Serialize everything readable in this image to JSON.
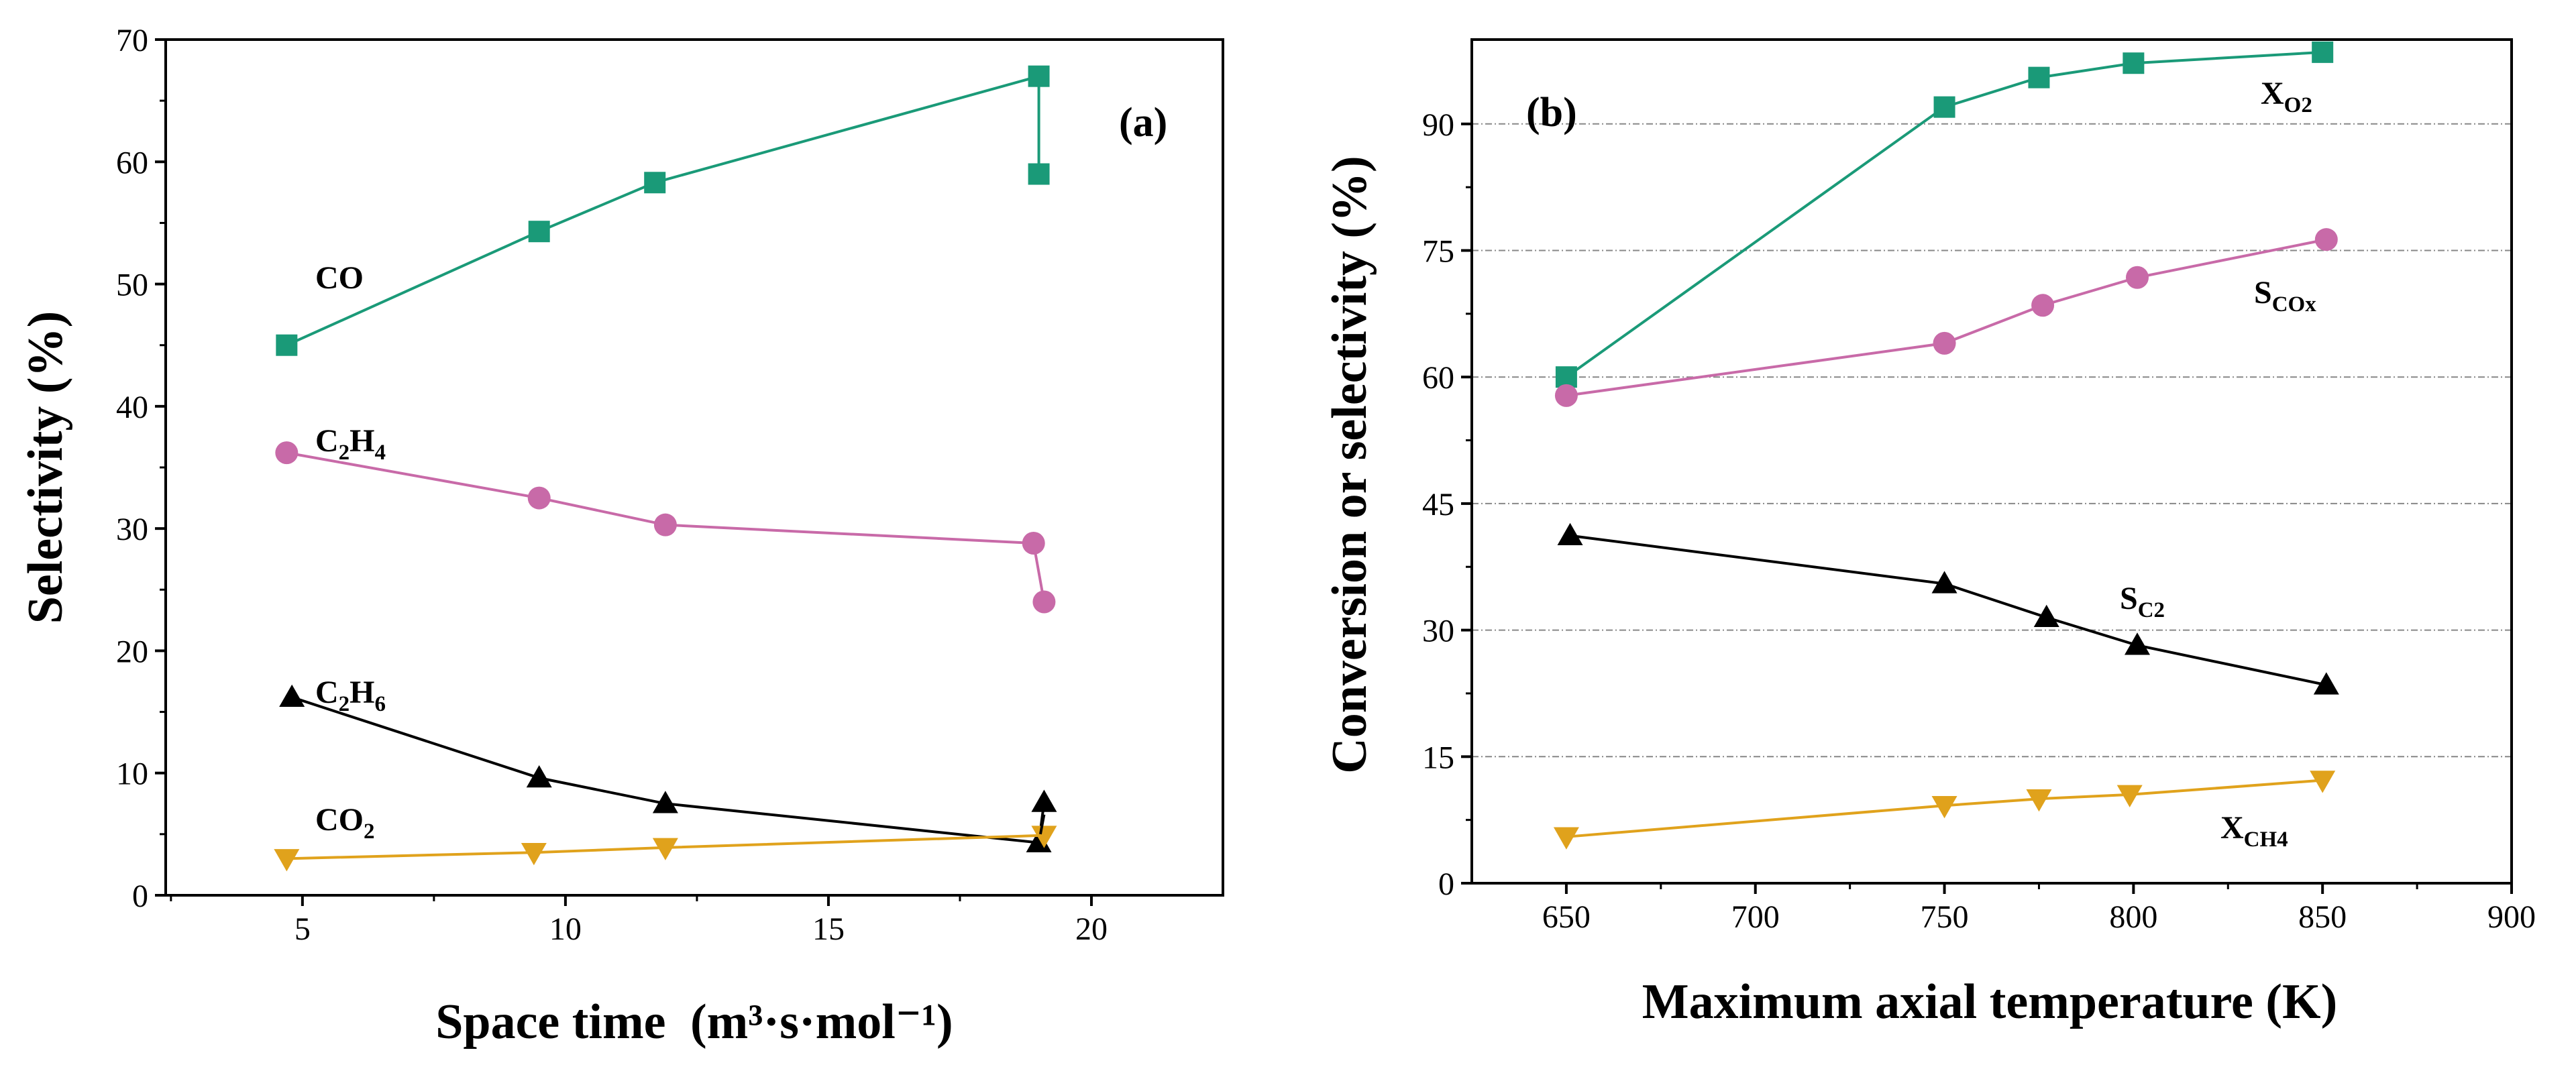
{
  "chart_data": [
    {
      "type": "line",
      "panel_label": "(a)",
      "xlabel": "Space time",
      "xlabel_unit": "(m³·s·mol⁻¹)",
      "ylabel": "Selectivity (%)",
      "xlim": [
        2.4,
        22.5
      ],
      "ylim": [
        0,
        70
      ],
      "xticks": [
        5,
        10,
        15,
        20
      ],
      "yticks": [
        0,
        10,
        20,
        30,
        40,
        50,
        60,
        70
      ],
      "grid": false,
      "series": [
        {
          "name": "CO",
          "label_main": "CO",
          "label_sub": "",
          "label_tail": "",
          "color": "#1a9a78",
          "marker": "square",
          "x": [
            4.7,
            9.5,
            11.7,
            19.0,
            19.0
          ],
          "y": [
            45.0,
            54.3,
            58.3,
            67.0,
            59.0
          ]
        },
        {
          "name": "C2H4",
          "label_main": "C",
          "label_sub": "2",
          "label_tail": "H",
          "label_sub2": "4",
          "color": "#c86aa8",
          "marker": "circle",
          "x": [
            4.7,
            9.5,
            11.9,
            18.9,
            19.1
          ],
          "y": [
            36.2,
            32.5,
            30.3,
            28.8,
            24.0
          ]
        },
        {
          "name": "C2H6",
          "label_main": "C",
          "label_sub": "2",
          "label_tail": "H",
          "label_sub2": "6",
          "color": "#000000",
          "marker": "triangle-up",
          "x": [
            4.8,
            9.5,
            11.9,
            19.0,
            19.1
          ],
          "y": [
            16.2,
            9.6,
            7.5,
            4.3,
            7.6
          ]
        },
        {
          "name": "CO2",
          "label_main": "CO",
          "label_sub": "2",
          "label_tail": "",
          "label_sub2": "",
          "color": "#e0a21c",
          "marker": "triangle-down",
          "x": [
            4.7,
            9.4,
            11.9,
            19.1
          ],
          "y": [
            3.0,
            3.5,
            3.9,
            4.9
          ]
        }
      ]
    },
    {
      "type": "line",
      "panel_label": "(b)",
      "xlabel": "Maximum axial temperature (K)",
      "ylabel": "Conversion or selectivity (%)",
      "xlim": [
        625,
        900
      ],
      "ylim": [
        0,
        100
      ],
      "xticks": [
        650,
        700,
        750,
        800,
        850,
        900
      ],
      "yticks": [
        0,
        15,
        30,
        45,
        60,
        75,
        90
      ],
      "grid": true,
      "series": [
        {
          "name": "XO2",
          "label_main": "X",
          "label_sub": "O2",
          "color": "#1a9a78",
          "marker": "square",
          "x": [
            650,
            750,
            775,
            800,
            850
          ],
          "y": [
            60.0,
            92.0,
            95.5,
            97.2,
            98.5
          ]
        },
        {
          "name": "SCOx",
          "label_main": "S",
          "label_sub": "COx",
          "color": "#c86aa8",
          "marker": "circle",
          "x": [
            650,
            750,
            776,
            801,
            851
          ],
          "y": [
            57.8,
            64.0,
            68.5,
            71.8,
            76.3
          ]
        },
        {
          "name": "SC2",
          "label_main": "S",
          "label_sub": "C2",
          "color": "#000000",
          "marker": "triangle-up",
          "x": [
            651,
            750,
            777,
            801,
            851
          ],
          "y": [
            41.2,
            35.5,
            31.5,
            28.2,
            23.5
          ]
        },
        {
          "name": "XCH4",
          "label_main": "X",
          "label_sub": "CH4",
          "color": "#e0a21c",
          "marker": "triangle-down",
          "x": [
            650,
            750,
            775,
            799,
            850
          ],
          "y": [
            5.5,
            9.2,
            10.0,
            10.5,
            12.2
          ]
        }
      ]
    }
  ]
}
